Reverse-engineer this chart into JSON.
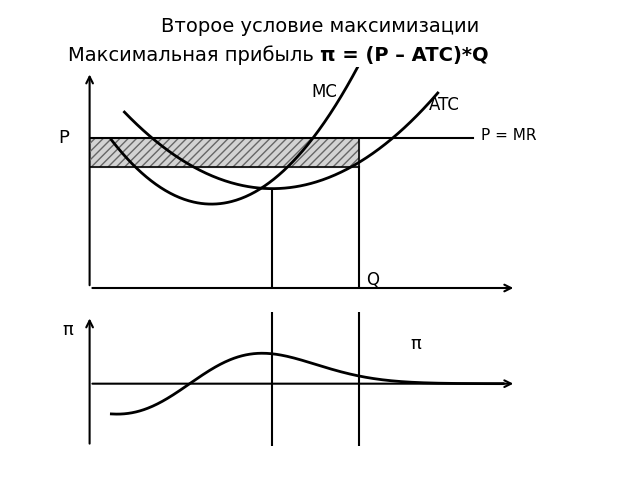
{
  "title_line1": "Второе условие максимизации",
  "title_line2_normal": "Максимальная прибыль ",
  "title_line2_bold": "π = (P – ATC)*Q",
  "background_color": "#ffffff",
  "line_color": "#000000",
  "hatch_color": "#888888",
  "fill_color": "#cccccc",
  "label_P": "P",
  "label_Q": "Q",
  "label_MR": "P = MR",
  "label_MC": "MC",
  "label_ATC": "ATC",
  "label_pi_axis": "π",
  "label_pi_text": "π",
  "P_level": 6.8,
  "ATC_at_Qstar": 5.5,
  "Q_star": 6.2,
  "Q_atc_min": 4.2
}
